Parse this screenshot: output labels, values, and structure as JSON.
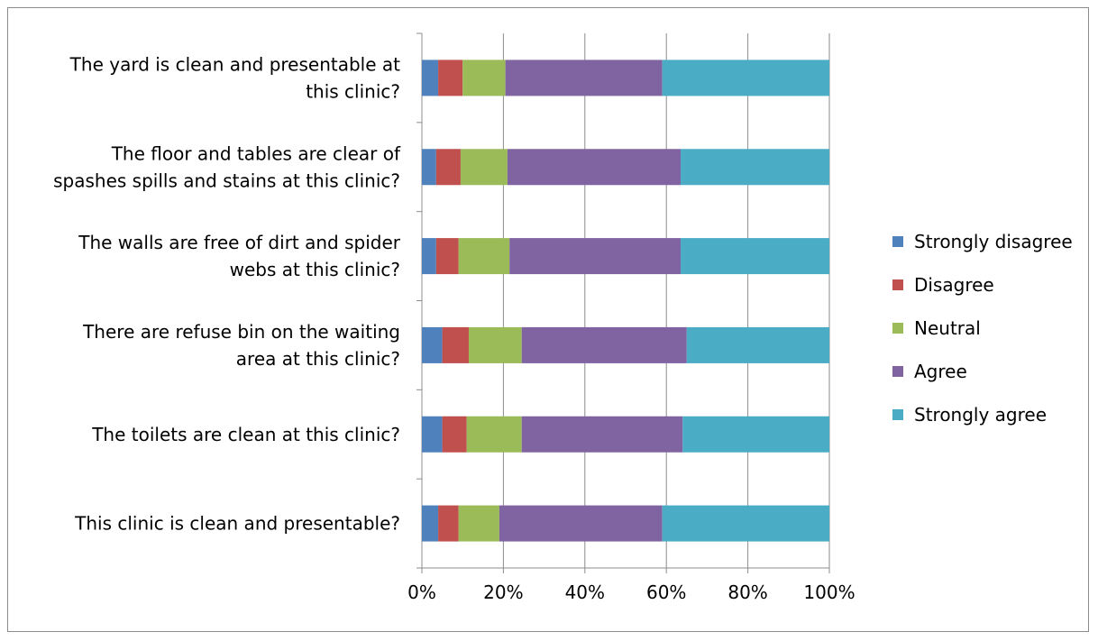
{
  "chart_data": {
    "type": "bar",
    "orientation": "horizontal",
    "stacked": "percent",
    "categories": [
      "This clinic is clean and presentable?",
      "The toilets are clean at this clinic?",
      "There are refuse bin on the waiting area at this clinic?",
      "The walls are free of dirt and spider webs at this clinic?",
      "The floor and tables are clear of spashes spills and stains at this clinic?",
      "The yard is clean and presentable at this clinic?"
    ],
    "category_lines": [
      [
        "This clinic is clean and presentable?"
      ],
      [
        "The toilets are clean at this clinic?"
      ],
      [
        "There are refuse bin on the waiting",
        "area at this clinic?"
      ],
      [
        "The walls are free of dirt and spider",
        "webs at this clinic?"
      ],
      [
        "The floor and tables are clear of",
        "spashes spills and stains at this clinic?"
      ],
      [
        "The yard is clean and presentable at",
        "this clinic?"
      ]
    ],
    "series": [
      {
        "name": "Strongly disagree",
        "color": "#4f81bd",
        "values": [
          4,
          5,
          5,
          3.5,
          3.5,
          4
        ]
      },
      {
        "name": "Disagree",
        "color": "#c0504d",
        "values": [
          5,
          6,
          6.5,
          5.5,
          6,
          6
        ]
      },
      {
        "name": "Neutral",
        "color": "#9bbb59",
        "values": [
          10,
          13.5,
          13,
          12.5,
          11.5,
          10.5
        ]
      },
      {
        "name": "Agree",
        "color": "#8064a2",
        "values": [
          40,
          39.5,
          40.5,
          42,
          42.5,
          38.5
        ]
      },
      {
        "name": "Strongly agree",
        "color": "#4bacc6",
        "values": [
          41,
          36,
          35,
          36.5,
          36.5,
          41
        ]
      }
    ],
    "xlim": [
      0,
      100
    ],
    "x_ticks": [
      "0%",
      "20%",
      "40%",
      "60%",
      "80%",
      "100%"
    ],
    "grid": "vertical major",
    "legend_position": "right"
  }
}
